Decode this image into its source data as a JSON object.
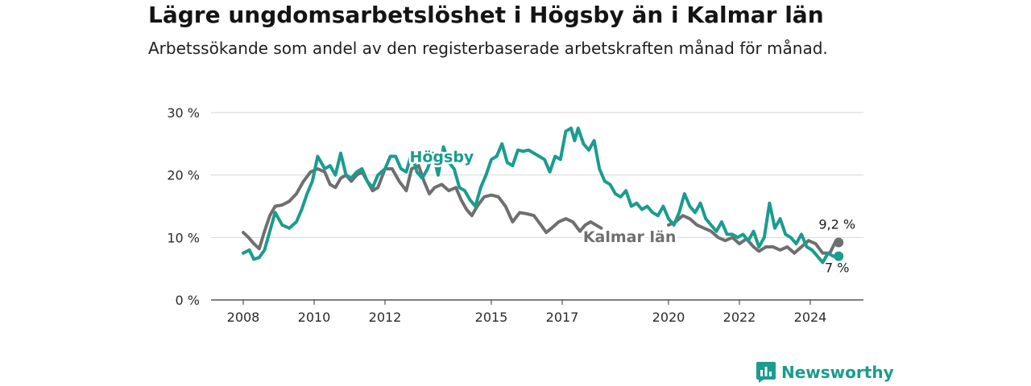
{
  "title": "Lägre ungdomsarbetslöshet i Högsby än i Kalmar län",
  "subtitle": "Arbetssökande som andel av den registerbaserade arbetskraften månad för månad.",
  "brand": {
    "name": "Newsworthy",
    "icon": "newsworthy-logo-icon",
    "color": "#1a9c8f"
  },
  "chart_data": {
    "type": "line",
    "xlim": [
      2008,
      2025
    ],
    "ylim": [
      0,
      30
    ],
    "yticks": [
      {
        "value": 0,
        "label": "0 %"
      },
      {
        "value": 10,
        "label": "10 %"
      },
      {
        "value": 20,
        "label": "20 %"
      },
      {
        "value": 30,
        "label": "30 %"
      }
    ],
    "xticks": [
      {
        "value": 2008,
        "label": "2008"
      },
      {
        "value": 2010,
        "label": "2010"
      },
      {
        "value": 2012,
        "label": "2012"
      },
      {
        "value": 2015,
        "label": "2015"
      },
      {
        "value": 2017,
        "label": "2017"
      },
      {
        "value": 2020,
        "label": "2020"
      },
      {
        "value": 2022,
        "label": "2022"
      },
      {
        "value": 2024,
        "label": "2024"
      }
    ],
    "grid": true,
    "series": [
      {
        "name": "Högsby",
        "color": "#1a9c8f",
        "end_label": "7 %",
        "points": [
          [
            2008.0,
            7.5
          ],
          [
            2008.17,
            8.0
          ],
          [
            2008.3,
            6.5
          ],
          [
            2008.45,
            6.8
          ],
          [
            2008.6,
            8.0
          ],
          [
            2008.75,
            11.0
          ],
          [
            2008.9,
            14.0
          ],
          [
            2009.1,
            12.0
          ],
          [
            2009.3,
            11.5
          ],
          [
            2009.5,
            12.5
          ],
          [
            2009.65,
            14.5
          ],
          [
            2009.8,
            17.0
          ],
          [
            2009.95,
            19.0
          ],
          [
            2010.1,
            23.0
          ],
          [
            2010.3,
            21.0
          ],
          [
            2010.45,
            21.5
          ],
          [
            2010.6,
            20.0
          ],
          [
            2010.75,
            23.5
          ],
          [
            2010.9,
            20.0
          ],
          [
            2011.05,
            19.5
          ],
          [
            2011.2,
            20.5
          ],
          [
            2011.35,
            21.0
          ],
          [
            2011.5,
            19.0
          ],
          [
            2011.65,
            18.0
          ],
          [
            2011.8,
            20.0
          ],
          [
            2012.0,
            21.0
          ],
          [
            2012.15,
            23.0
          ],
          [
            2012.3,
            23.0
          ],
          [
            2012.45,
            21.0
          ],
          [
            2012.6,
            20.5
          ],
          [
            2012.75,
            23.5
          ],
          [
            2012.9,
            20.5
          ],
          [
            2013.05,
            19.5
          ],
          [
            2013.2,
            21.0
          ],
          [
            2013.35,
            23.5
          ],
          [
            2013.5,
            20.0
          ],
          [
            2013.65,
            24.5
          ],
          [
            2013.8,
            22.0
          ],
          [
            2013.95,
            21.0
          ],
          [
            2014.1,
            18.0
          ],
          [
            2014.25,
            17.5
          ],
          [
            2014.4,
            16.0
          ],
          [
            2014.55,
            15.0
          ],
          [
            2014.7,
            18.0
          ],
          [
            2014.85,
            20.0
          ],
          [
            2015.0,
            22.5
          ],
          [
            2015.15,
            23.0
          ],
          [
            2015.3,
            25.0
          ],
          [
            2015.45,
            22.0
          ],
          [
            2015.6,
            21.5
          ],
          [
            2015.75,
            24.0
          ],
          [
            2015.9,
            23.8
          ],
          [
            2016.05,
            24.0
          ],
          [
            2016.2,
            23.5
          ],
          [
            2016.35,
            23.0
          ],
          [
            2016.5,
            22.5
          ],
          [
            2016.65,
            20.5
          ],
          [
            2016.8,
            23.0
          ],
          [
            2016.95,
            22.5
          ],
          [
            2017.1,
            27.0
          ],
          [
            2017.25,
            27.5
          ],
          [
            2017.35,
            25.5
          ],
          [
            2017.45,
            27.5
          ],
          [
            2017.6,
            25.0
          ],
          [
            2017.75,
            24.0
          ],
          [
            2017.9,
            25.5
          ],
          [
            2018.05,
            21.0
          ],
          [
            2018.2,
            19.0
          ],
          [
            2018.35,
            18.5
          ],
          [
            2018.5,
            17.0
          ],
          [
            2018.65,
            16.5
          ],
          [
            2018.8,
            17.5
          ],
          [
            2018.95,
            15.0
          ],
          [
            2019.1,
            15.5
          ],
          [
            2019.25,
            14.5
          ],
          [
            2019.4,
            15.0
          ],
          [
            2019.55,
            14.0
          ],
          [
            2019.7,
            13.5
          ],
          [
            2019.85,
            15.0
          ],
          [
            2020.0,
            13.0
          ],
          [
            2020.15,
            12.0
          ],
          [
            2020.3,
            14.0
          ],
          [
            2020.45,
            17.0
          ],
          [
            2020.6,
            15.0
          ],
          [
            2020.75,
            14.0
          ],
          [
            2020.9,
            15.5
          ],
          [
            2021.05,
            13.0
          ],
          [
            2021.2,
            12.0
          ],
          [
            2021.35,
            11.0
          ],
          [
            2021.5,
            12.5
          ],
          [
            2021.65,
            10.5
          ],
          [
            2021.8,
            10.5
          ],
          [
            2021.95,
            10.0
          ],
          [
            2022.1,
            10.5
          ],
          [
            2022.25,
            9.5
          ],
          [
            2022.4,
            11.0
          ],
          [
            2022.55,
            8.5
          ],
          [
            2022.7,
            10.0
          ],
          [
            2022.85,
            15.5
          ],
          [
            2023.0,
            11.5
          ],
          [
            2023.15,
            13.0
          ],
          [
            2023.3,
            10.5
          ],
          [
            2023.45,
            10.0
          ],
          [
            2023.6,
            9.0
          ],
          [
            2023.75,
            10.5
          ],
          [
            2023.9,
            8.5
          ],
          [
            2024.05,
            8.0
          ],
          [
            2024.2,
            7.0
          ],
          [
            2024.35,
            6.0
          ],
          [
            2024.5,
            7.5
          ],
          [
            2024.65,
            7.0
          ],
          [
            2024.8,
            7.0
          ]
        ]
      },
      {
        "name": "Kalmar län",
        "color": "#6f6f70",
        "end_label": "9,2 %",
        "points": [
          [
            2008.0,
            10.8
          ],
          [
            2008.15,
            10.0
          ],
          [
            2008.3,
            9.0
          ],
          [
            2008.45,
            8.2
          ],
          [
            2008.6,
            11.0
          ],
          [
            2008.75,
            13.5
          ],
          [
            2008.9,
            15.0
          ],
          [
            2009.1,
            15.2
          ],
          [
            2009.3,
            15.8
          ],
          [
            2009.5,
            17.0
          ],
          [
            2009.7,
            19.0
          ],
          [
            2009.9,
            20.5
          ],
          [
            2010.1,
            21.0
          ],
          [
            2010.3,
            20.5
          ],
          [
            2010.45,
            18.5
          ],
          [
            2010.6,
            18.0
          ],
          [
            2010.75,
            19.5
          ],
          [
            2010.9,
            20.0
          ],
          [
            2011.05,
            19.0
          ],
          [
            2011.2,
            20.0
          ],
          [
            2011.35,
            20.5
          ],
          [
            2011.5,
            19.0
          ],
          [
            2011.65,
            17.5
          ],
          [
            2011.8,
            18.0
          ],
          [
            2012.0,
            21.0
          ],
          [
            2012.2,
            21.0
          ],
          [
            2012.4,
            19.0
          ],
          [
            2012.6,
            17.5
          ],
          [
            2012.75,
            21.0
          ],
          [
            2012.95,
            21.5
          ],
          [
            2013.1,
            19.0
          ],
          [
            2013.25,
            17.0
          ],
          [
            2013.4,
            18.0
          ],
          [
            2013.6,
            18.5
          ],
          [
            2013.8,
            17.5
          ],
          [
            2014.0,
            18.0
          ],
          [
            2014.15,
            16.0
          ],
          [
            2014.3,
            14.5
          ],
          [
            2014.45,
            13.5
          ],
          [
            2014.6,
            15.0
          ],
          [
            2014.8,
            16.5
          ],
          [
            2015.0,
            16.8
          ],
          [
            2015.2,
            16.5
          ],
          [
            2015.4,
            15.0
          ],
          [
            2015.6,
            12.5
          ],
          [
            2015.8,
            14.0
          ],
          [
            2016.0,
            13.8
          ],
          [
            2016.2,
            13.5
          ],
          [
            2016.4,
            12.0
          ],
          [
            2016.55,
            10.8
          ],
          [
            2016.7,
            11.5
          ],
          [
            2016.9,
            12.5
          ],
          [
            2017.1,
            13.0
          ],
          [
            2017.3,
            12.5
          ],
          [
            2017.5,
            11.0
          ],
          [
            2017.65,
            12.0
          ],
          [
            2017.8,
            12.5
          ],
          [
            2017.95,
            12.0
          ],
          [
            2018.1,
            11.5
          ]
        ]
      },
      {
        "name": "Kalmar län",
        "color": "#6f6f70",
        "end_label": "9,2 %",
        "points": [
          [
            2020.0,
            12.0
          ],
          [
            2020.2,
            12.5
          ],
          [
            2020.4,
            13.5
          ],
          [
            2020.6,
            13.0
          ],
          [
            2020.8,
            12.0
          ],
          [
            2021.0,
            11.5
          ],
          [
            2021.2,
            11.0
          ],
          [
            2021.4,
            10.0
          ],
          [
            2021.6,
            9.5
          ],
          [
            2021.8,
            10.0
          ],
          [
            2022.0,
            9.0
          ],
          [
            2022.2,
            9.8
          ],
          [
            2022.4,
            8.5
          ],
          [
            2022.55,
            7.8
          ],
          [
            2022.75,
            8.5
          ],
          [
            2022.95,
            8.5
          ],
          [
            2023.15,
            8.0
          ],
          [
            2023.35,
            8.5
          ],
          [
            2023.55,
            7.5
          ],
          [
            2023.75,
            8.5
          ],
          [
            2023.95,
            9.5
          ],
          [
            2024.15,
            9.0
          ],
          [
            2024.35,
            7.5
          ],
          [
            2024.55,
            7.5
          ],
          [
            2024.7,
            9.2
          ],
          [
            2024.8,
            9.2
          ]
        ]
      }
    ],
    "inline_labels": [
      {
        "series": "Högsby",
        "text": "Högsby",
        "x": 2013.6,
        "y": 22.1,
        "color": "#1a9c8f"
      },
      {
        "series": "Kalmar län",
        "text": "Kalmar län",
        "x": 2018.9,
        "y": 9.3,
        "color": "#6f6f70"
      }
    ]
  }
}
